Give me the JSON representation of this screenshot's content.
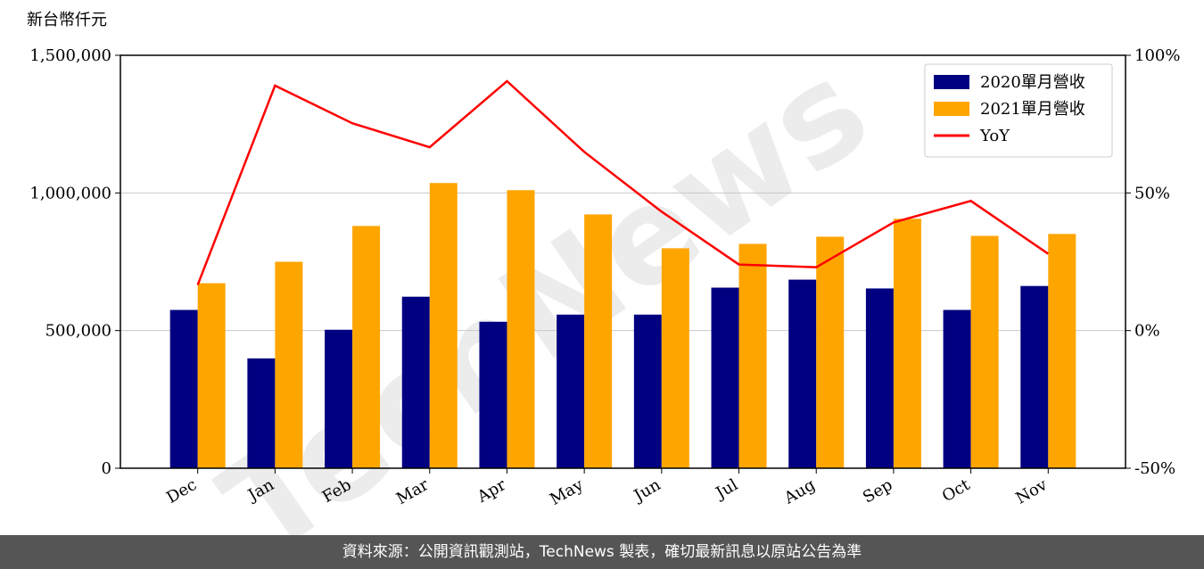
{
  "chart_data": {
    "type": "bar",
    "watermark": "TechNews",
    "y_label": "新台幣仟元",
    "categories": [
      "Dec",
      "Jan",
      "Feb",
      "Mar",
      "Apr",
      "May",
      "Jun",
      "Jul",
      "Aug",
      "Sep",
      "Oct",
      "Nov"
    ],
    "series": [
      {
        "name": "2020單月營收",
        "type": "bar",
        "color": "#000080",
        "values": [
          575000,
          399000,
          503000,
          623000,
          532000,
          558000,
          558000,
          656000,
          685000,
          653000,
          575000,
          662000
        ]
      },
      {
        "name": "2021單月營收",
        "type": "bar",
        "color": "#ffa500",
        "values": [
          672000,
          750000,
          880000,
          1036000,
          1010000,
          922000,
          799000,
          815000,
          841000,
          906000,
          844000,
          851000
        ]
      },
      {
        "name": "YoY",
        "type": "line",
        "axis": "y2",
        "color": "#ff0000",
        "values": [
          16.6,
          89.0,
          75.3,
          66.6,
          90.6,
          64.9,
          43.2,
          24.0,
          23.0,
          39.3,
          47.1,
          27.9
        ]
      }
    ],
    "ylim": [
      0,
      1500000
    ],
    "yticks": [
      {
        "value": 0,
        "label": "0"
      },
      {
        "value": 500000,
        "label": "500,000"
      },
      {
        "value": 1000000,
        "label": "1,000,000"
      },
      {
        "value": 1500000,
        "label": "1,500,000"
      }
    ],
    "y2lim": [
      -50,
      100
    ],
    "y2ticks": [
      {
        "value": -50,
        "label": "-50%"
      },
      {
        "value": 0,
        "label": "0%"
      },
      {
        "value": 50,
        "label": "50%"
      },
      {
        "value": 100,
        "label": "100%"
      }
    ],
    "grid": true,
    "legend": "upper right"
  },
  "footer": "資料來源：公開資訊觀測站，TechNews 製表，確切最新訊息以原站公告為準"
}
